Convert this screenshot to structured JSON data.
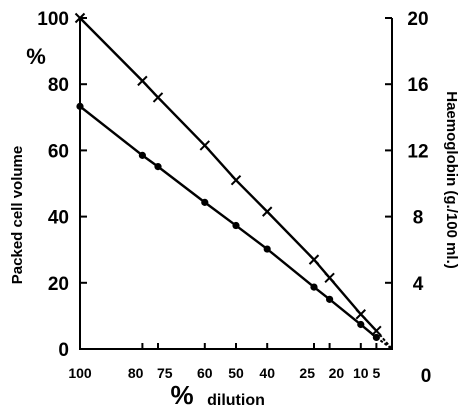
{
  "chart_data": {
    "type": "line",
    "title": "",
    "xlabel": "dilution",
    "xlabel_symbol": "%",
    "x_reversed": true,
    "xlim": [
      0,
      100
    ],
    "x_ticks": [
      {
        "value": 100,
        "label": "100"
      },
      {
        "value": 80,
        "label": "80"
      },
      {
        "value": 75,
        "label": "75"
      },
      {
        "value": 60,
        "label": "60"
      },
      {
        "value": 50,
        "label": "50"
      },
      {
        "value": 40,
        "label": "40"
      },
      {
        "value": 25,
        "label": "25"
      },
      {
        "value": 20,
        "label": "20"
      },
      {
        "value": 10,
        "label": "10"
      },
      {
        "value": 5,
        "label": "5"
      },
      {
        "value": 0,
        "label": "0"
      }
    ],
    "ylabel_left": "Packed cell volume",
    "ylabel_left_unit": "%",
    "ylim_left": [
      0,
      100
    ],
    "y_left_ticks": [
      "0",
      "20",
      "40",
      "60",
      "80",
      "100"
    ],
    "ylabel_right": "Haemoglobin (g./100 ml.)",
    "ylim_right": [
      0,
      20
    ],
    "y_right_ticks": [
      "4",
      "8",
      "12",
      "16",
      "20"
    ],
    "grid": false,
    "legend": "none",
    "series": [
      {
        "marker": "x",
        "axis": "right",
        "x": [
          100,
          80,
          75,
          60,
          50,
          40,
          25,
          20,
          10,
          5
        ],
        "y": [
          20.0,
          16.2,
          15.2,
          12.3,
          10.2,
          8.3,
          5.4,
          4.3,
          2.1,
          1.1
        ]
      },
      {
        "marker": "dot",
        "axis": "left",
        "x": [
          100,
          80,
          75,
          60,
          50,
          40,
          25,
          20,
          10,
          5
        ],
        "y": [
          73.3,
          58.5,
          55.1,
          44.3,
          37.3,
          30.2,
          18.7,
          15.0,
          7.4,
          3.5
        ]
      }
    ]
  }
}
